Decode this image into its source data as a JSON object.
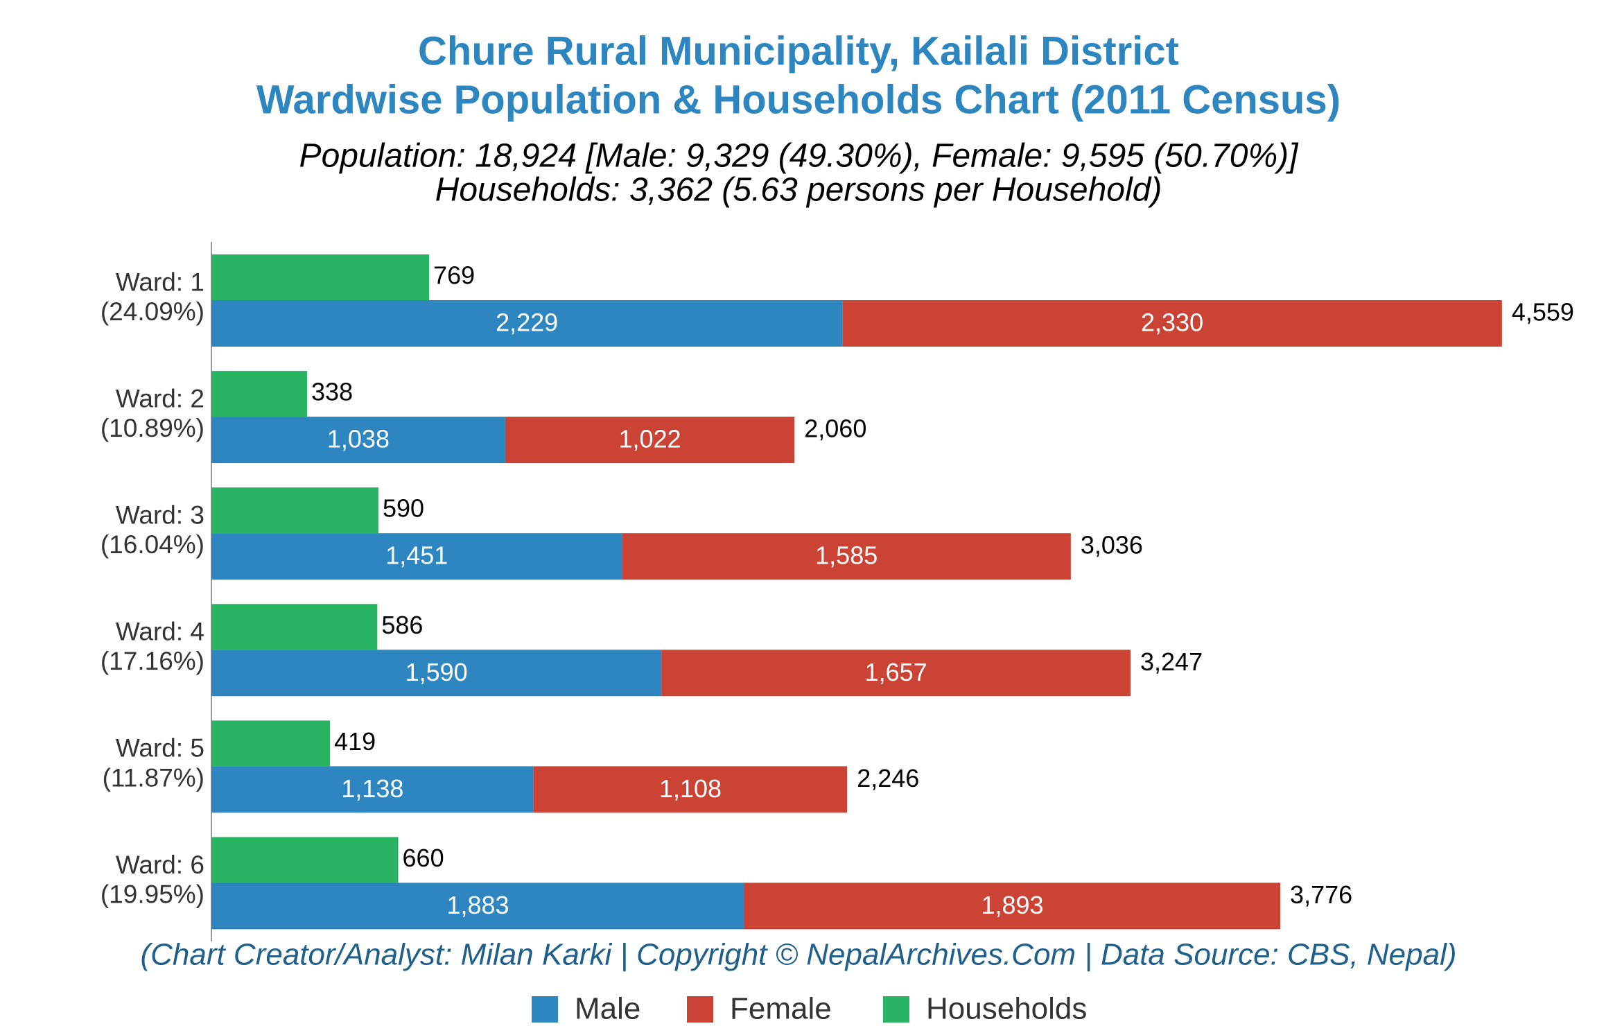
{
  "chart_data": {
    "type": "bar",
    "title": [
      "Chure Rural Municipality, Kailali District",
      "Wardwise Population & Households Chart (2011 Census)"
    ],
    "subtitle": [
      "Population: 18,924 [Male: 9,329 (49.30%), Female: 9,595 (50.70%)]",
      "Households: 3,362 (5.63 persons per Household)"
    ],
    "footer": "(Chart Creator/Analyst: Milan Karki | Copyright © NepalArchives.Com | Data Source: CBS, Nepal)",
    "categories": [
      "Ward: 1",
      "Ward: 2",
      "Ward: 3",
      "Ward: 4",
      "Ward: 5",
      "Ward: 6"
    ],
    "category_shares": [
      "(24.09%)",
      "(10.89%)",
      "(16.04%)",
      "(17.16%)",
      "(11.87%)",
      "(19.95%)"
    ],
    "series": [
      {
        "name": "Male",
        "color": "#2e86c1",
        "values": [
          2229,
          1038,
          1451,
          1590,
          1138,
          1883
        ],
        "value_labels": [
          "2,229",
          "1,038",
          "1,451",
          "1,590",
          "1,138",
          "1,883"
        ]
      },
      {
        "name": "Female",
        "color": "#cb4335",
        "values": [
          2330,
          1022,
          1585,
          1657,
          1108,
          1893
        ],
        "value_labels": [
          "2,330",
          "1,022",
          "1,585",
          "1,657",
          "1,108",
          "1,893"
        ]
      },
      {
        "name": "Households",
        "color": "#28b463",
        "values": [
          769,
          338,
          590,
          586,
          419,
          660
        ]
      }
    ],
    "totals": [
      4559,
      2060,
      3036,
      3247,
      2246,
      3776
    ],
    "total_labels": [
      "4,559",
      "2,060",
      "3,036",
      "3,247",
      "2,246",
      "3,776"
    ],
    "xlim": [
      0,
      4890
    ]
  }
}
